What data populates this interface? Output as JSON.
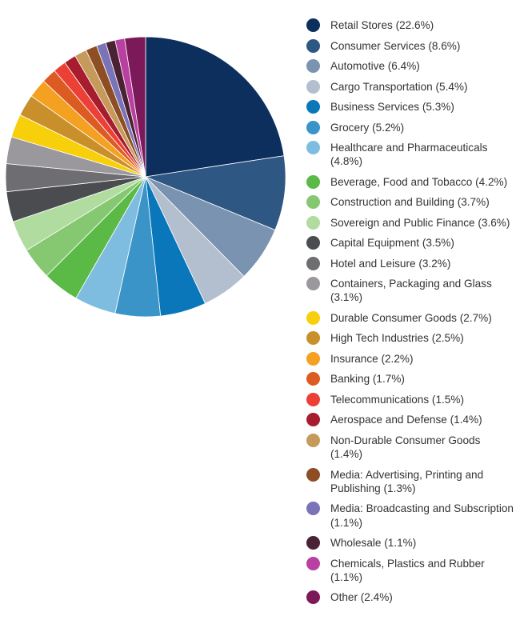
{
  "chart_data": {
    "type": "pie",
    "direction": "clockwise-from-top",
    "legend_placement": "right",
    "slices": [
      {
        "label": "Retail Stores (22.6%)",
        "value": 22.6,
        "color": "#0d2f5e"
      },
      {
        "label": "Consumer Services (8.6%)",
        "value": 8.6,
        "color": "#2e5783"
      },
      {
        "label": "Automotive (6.4%)",
        "value": 6.4,
        "color": "#7a93b0"
      },
      {
        "label": "Cargo Transportation (5.4%)",
        "value": 5.4,
        "color": "#b3bfcf"
      },
      {
        "label": "Business Services (5.3%)",
        "value": 5.3,
        "color": "#0a77bb"
      },
      {
        "label": "Grocery  (5.2%)",
        "value": 5.2,
        "color": "#3a94c8"
      },
      {
        "label": "Healthcare and Pharmaceuticals (4.8%)",
        "value": 4.8,
        "color": "#7fbde0"
      },
      {
        "label": "Beverage, Food and Tobacco (4.2%)",
        "value": 4.2,
        "color": "#5bb946"
      },
      {
        "label": "Construction and Building (3.7%)",
        "value": 3.7,
        "color": "#86c872"
      },
      {
        "label": "Sovereign and Public Finance (3.6%)",
        "value": 3.6,
        "color": "#b0dca0"
      },
      {
        "label": "Capital Equipment (3.5%)",
        "value": 3.5,
        "color": "#4a4c50"
      },
      {
        "label": "Hotel and Leisure (3.2%)",
        "value": 3.2,
        "color": "#6e6e72"
      },
      {
        "label": "Containers, Packaging and Glass (3.1%)",
        "value": 3.1,
        "color": "#9a989c"
      },
      {
        "label": "Durable Consumer Goods (2.7%)",
        "value": 2.7,
        "color": "#f8cf0b"
      },
      {
        "label": "High Tech Industries (2.5%)",
        "value": 2.5,
        "color": "#c98f2a"
      },
      {
        "label": "Insurance (2.2%)",
        "value": 2.2,
        "color": "#f4a020"
      },
      {
        "label": "Banking (1.7%)",
        "value": 1.7,
        "color": "#dc5b22"
      },
      {
        "label": "Telecommunications (1.5%)",
        "value": 1.5,
        "color": "#ec4036"
      },
      {
        "label": "Aerospace and Defense (1.4%)",
        "value": 1.4,
        "color": "#a71d2d"
      },
      {
        "label": "Non-Durable Consumer Goods (1.4%)",
        "value": 1.4,
        "color": "#c59a5a"
      },
      {
        "label": "Media: Advertising, Printing and Publishing (1.3%)",
        "value": 1.3,
        "color": "#8e4e23"
      },
      {
        "label": "Media: Broadcasting and Subscription (1.1%)",
        "value": 1.1,
        "color": "#7a73b8"
      },
      {
        "label": "Wholesale (1.1%)",
        "value": 1.1,
        "color": "#4b2234"
      },
      {
        "label": "Chemicals, Plastics and Rubber (1.1%)",
        "value": 1.1,
        "color": "#b940a0"
      },
      {
        "label": "Other (2.4%)",
        "value": 2.4,
        "color": "#7c1959"
      }
    ]
  }
}
